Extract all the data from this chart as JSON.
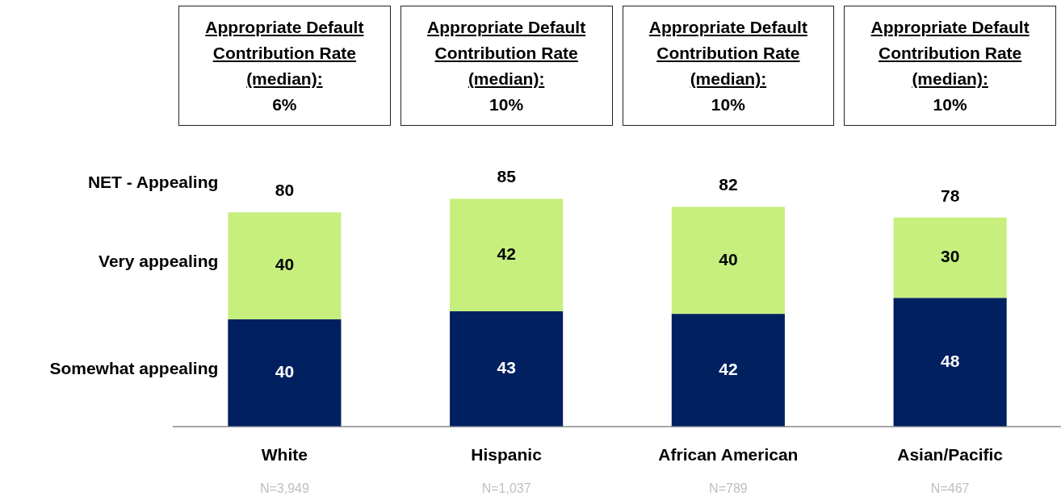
{
  "chart_data": {
    "type": "bar",
    "stacked": true,
    "data_labels": true,
    "categories": [
      "White",
      "Hispanic",
      "African American",
      "Asian/Pacific"
    ],
    "series": [
      {
        "name": "Somewhat appealing",
        "color": "#002060",
        "values": [
          40,
          43,
          42,
          48
        ]
      },
      {
        "name": "Very appealing",
        "color": "#c6ef7e",
        "values": [
          40,
          42,
          40,
          30
        ]
      }
    ],
    "totals": [
      "80",
      "85",
      "82",
      "78"
    ],
    "annotations": [
      "Appropriate Default Contribution Rate (median):\n6%",
      "Appropriate Default Contribution Rate (median):\n10%",
      "Appropriate Default Contribution Rate (median):\n10%",
      "Appropriate Default Contribution Rate (median):\n10%",
      "NET - Appealing",
      "N=3,949",
      "N=1,037",
      "N=789",
      "N=467"
    ]
  }
}
